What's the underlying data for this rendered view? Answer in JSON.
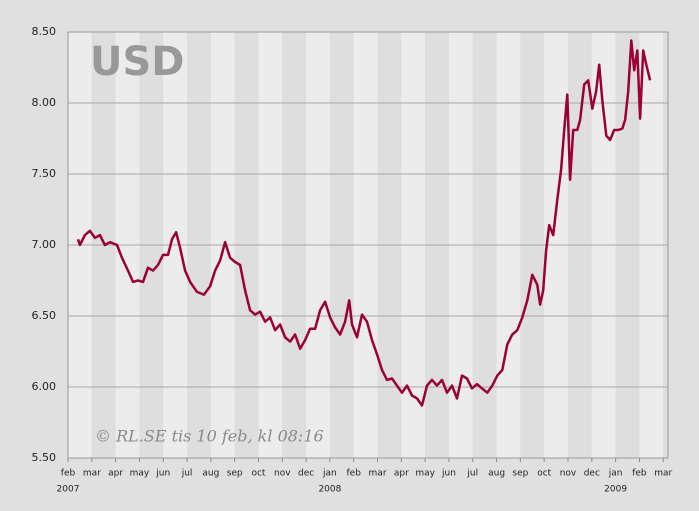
{
  "chart_data": {
    "type": "line",
    "title": "USD",
    "annotation": "© RL.SE tis 10 feb, kl 08:16",
    "xlim": [
      0,
      25.2
    ],
    "xticks": [
      {
        "value": 0,
        "label": "feb"
      },
      {
        "value": 1,
        "label": "mar"
      },
      {
        "value": 2,
        "label": "apr"
      },
      {
        "value": 3,
        "label": "may"
      },
      {
        "value": 4,
        "label": "jun"
      },
      {
        "value": 5,
        "label": "jul"
      },
      {
        "value": 6,
        "label": "aug"
      },
      {
        "value": 7,
        "label": "sep"
      },
      {
        "value": 8,
        "label": "oct"
      },
      {
        "value": 9,
        "label": "nov"
      },
      {
        "value": 10,
        "label": "dec"
      },
      {
        "value": 11,
        "label": "jan"
      },
      {
        "value": 12,
        "label": "feb"
      },
      {
        "value": 13,
        "label": "mar"
      },
      {
        "value": 14,
        "label": "apr"
      },
      {
        "value": 15,
        "label": "may"
      },
      {
        "value": 16,
        "label": "jun"
      },
      {
        "value": 17,
        "label": "jul"
      },
      {
        "value": 18,
        "label": "aug"
      },
      {
        "value": 19,
        "label": "sep"
      },
      {
        "value": 20,
        "label": "oct"
      },
      {
        "value": 21,
        "label": "nov"
      },
      {
        "value": 22,
        "label": "dec"
      },
      {
        "value": 23,
        "label": "jan"
      },
      {
        "value": 24,
        "label": "feb"
      },
      {
        "value": 25,
        "label": "mar"
      }
    ],
    "year_labels": [
      {
        "value": 0,
        "label": "2007"
      },
      {
        "value": 11,
        "label": "2008"
      },
      {
        "value": 23,
        "label": "2009"
      }
    ],
    "ylim": [
      5.5,
      8.5
    ],
    "yticks": [
      {
        "value": 5.5,
        "label": "5.50"
      },
      {
        "value": 6,
        "label": "6.00"
      },
      {
        "value": 6.5,
        "label": "6.50"
      },
      {
        "value": 7,
        "label": "7.00"
      },
      {
        "value": 7.5,
        "label": "7.50"
      },
      {
        "value": 8,
        "label": "8.00"
      },
      {
        "value": 8.5,
        "label": "8.50"
      }
    ],
    "grid": true,
    "series": [
      {
        "color": "#9b0036",
        "x": [
          0.42,
          0.5,
          0.71,
          0.92,
          1.13,
          1.34,
          1.55,
          1.76,
          2.06,
          2.27,
          2.52,
          2.73,
          2.94,
          3.15,
          3.36,
          3.57,
          3.78,
          3.99,
          4.2,
          4.37,
          4.54,
          4.71,
          4.92,
          5.13,
          5.42,
          5.71,
          5.97,
          6.18,
          6.39,
          6.6,
          6.81,
          7.02,
          7.23,
          7.44,
          7.65,
          7.86,
          8.07,
          8.28,
          8.49,
          8.7,
          8.91,
          9.12,
          9.33,
          9.54,
          9.75,
          9.96,
          10.17,
          10.38,
          10.59,
          10.8,
          11.01,
          11.22,
          11.43,
          11.64,
          11.81,
          11.93,
          12.14,
          12.35,
          12.56,
          12.77,
          12.98,
          13.19,
          13.4,
          13.61,
          13.82,
          14.03,
          14.24,
          14.45,
          14.66,
          14.87,
          15.08,
          15.29,
          15.5,
          15.71,
          15.92,
          16.13,
          16.34,
          16.55,
          16.76,
          16.97,
          17.18,
          17.39,
          17.61,
          17.82,
          18.03,
          18.24,
          18.45,
          18.66,
          18.87,
          19.08,
          19.29,
          19.5,
          19.71,
          19.83,
          19.96,
          20.08,
          20.21,
          20.38,
          20.55,
          20.71,
          20.84,
          20.97,
          21.09,
          21.22,
          21.39,
          21.51,
          21.68,
          21.85,
          22.02,
          22.18,
          22.31,
          22.44,
          22.61,
          22.77,
          22.94,
          23.11,
          23.28,
          23.4,
          23.53,
          23.66,
          23.78,
          23.91,
          24.03,
          24.16,
          24.29,
          24.45
        ],
        "values": [
          7.04,
          7.0,
          7.07,
          7.1,
          7.05,
          7.07,
          7.0,
          7.02,
          7.0,
          6.91,
          6.82,
          6.74,
          6.75,
          6.74,
          6.84,
          6.82,
          6.86,
          6.93,
          6.93,
          7.04,
          7.09,
          6.98,
          6.82,
          6.74,
          6.67,
          6.65,
          6.71,
          6.82,
          6.89,
          7.02,
          6.91,
          6.88,
          6.86,
          6.68,
          6.54,
          6.51,
          6.53,
          6.46,
          6.49,
          6.4,
          6.44,
          6.35,
          6.32,
          6.37,
          6.27,
          6.33,
          6.41,
          6.41,
          6.54,
          6.6,
          6.49,
          6.42,
          6.37,
          6.46,
          6.61,
          6.44,
          6.35,
          6.51,
          6.46,
          6.33,
          6.23,
          6.12,
          6.05,
          6.06,
          6.01,
          5.96,
          6.01,
          5.94,
          5.92,
          5.87,
          6.01,
          6.05,
          6.01,
          6.05,
          5.96,
          6.01,
          5.92,
          6.08,
          6.06,
          5.99,
          6.02,
          5.99,
          5.96,
          6.01,
          6.08,
          6.12,
          6.3,
          6.37,
          6.4,
          6.49,
          6.61,
          6.79,
          6.72,
          6.58,
          6.68,
          6.96,
          7.14,
          7.07,
          7.32,
          7.53,
          7.81,
          8.06,
          7.46,
          7.81,
          7.81,
          7.88,
          8.13,
          8.16,
          7.96,
          8.08,
          8.27,
          8.02,
          7.77,
          7.74,
          7.81,
          7.81,
          7.82,
          7.88,
          8.08,
          8.44,
          8.23,
          8.37,
          7.89,
          8.37,
          8.27,
          8.16
        ]
      }
    ]
  }
}
